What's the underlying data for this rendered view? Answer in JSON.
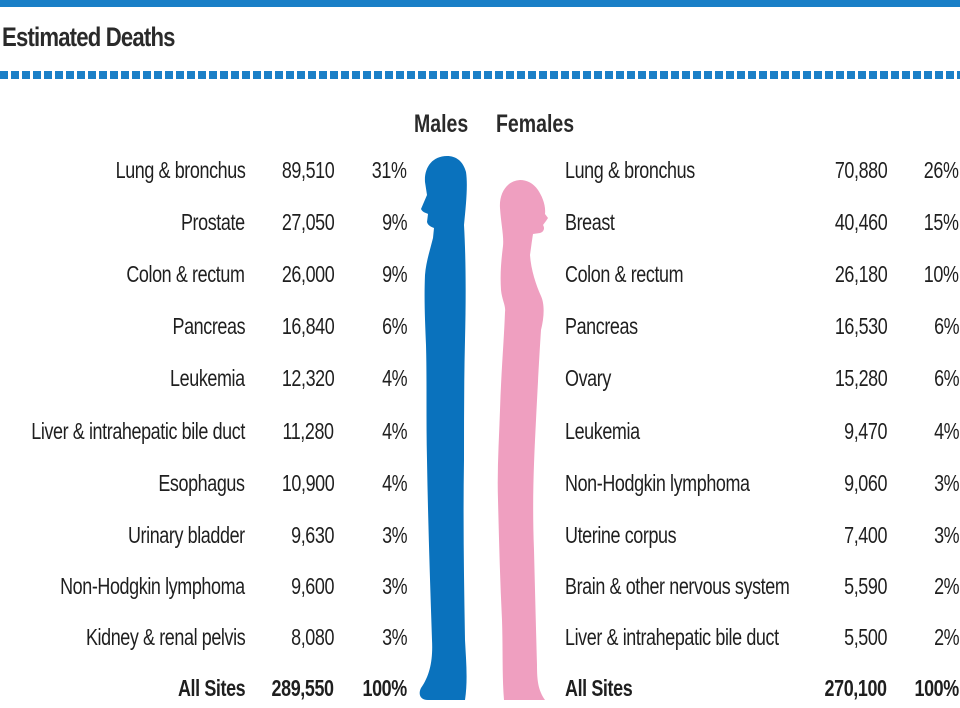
{
  "title": "Estimated Deaths",
  "colors": {
    "accent": "#1a7fc7",
    "male": "#0a72bd",
    "female": "#ef9fc0"
  },
  "chart_data": {
    "type": "table",
    "title": "Estimated Deaths",
    "groups": [
      "Males",
      "Females"
    ],
    "males": [
      {
        "site": "Lung & bronchus",
        "count": "89,510",
        "pct": "31%"
      },
      {
        "site": "Prostate",
        "count": "27,050",
        "pct": "9%"
      },
      {
        "site": "Colon & rectum",
        "count": "26,000",
        "pct": "9%"
      },
      {
        "site": "Pancreas",
        "count": "16,840",
        "pct": "6%"
      },
      {
        "site": "Leukemia",
        "count": "12,320",
        "pct": "4%"
      },
      {
        "site": "Liver & intrahepatic bile duct",
        "count": "11,280",
        "pct": "4%"
      },
      {
        "site": "Esophagus",
        "count": "10,900",
        "pct": "4%"
      },
      {
        "site": "Urinary bladder",
        "count": "9,630",
        "pct": "3%"
      },
      {
        "site": "Non-Hodgkin lymphoma",
        "count": "9,600",
        "pct": "3%"
      },
      {
        "site": "Kidney & renal pelvis",
        "count": "8,080",
        "pct": "3%"
      }
    ],
    "females": [
      {
        "site": "Lung & bronchus",
        "count": "70,880",
        "pct": "26%"
      },
      {
        "site": "Breast",
        "count": "40,460",
        "pct": "15%"
      },
      {
        "site": "Colon & rectum",
        "count": "26,180",
        "pct": "10%"
      },
      {
        "site": "Pancreas",
        "count": "16,530",
        "pct": "6%"
      },
      {
        "site": "Ovary",
        "count": "15,280",
        "pct": "6%"
      },
      {
        "site": "Leukemia",
        "count": "9,470",
        "pct": "4%"
      },
      {
        "site": "Non-Hodgkin lymphoma",
        "count": "9,060",
        "pct": "3%"
      },
      {
        "site": "Uterine corpus",
        "count": "7,400",
        "pct": "3%"
      },
      {
        "site": "Brain & other nervous system",
        "count": "5,590",
        "pct": "2%"
      },
      {
        "site": "Liver & intrahepatic bile duct",
        "count": "5,500",
        "pct": "2%"
      }
    ],
    "totals": {
      "males": {
        "site": "All Sites",
        "count": "289,550",
        "pct": "100%"
      },
      "females": {
        "site": "All Sites",
        "count": "270,100",
        "pct": "100%"
      }
    }
  }
}
